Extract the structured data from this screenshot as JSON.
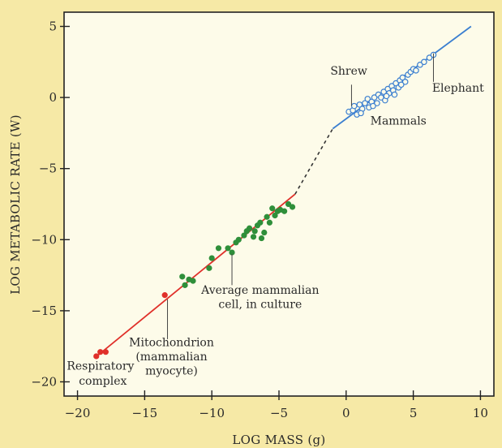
{
  "chart_data": {
    "type": "scatter",
    "xlabel": "LOG MASS (g)",
    "ylabel": "LOG METABOLIC RATE (W)",
    "xlim": [
      -21,
      11
    ],
    "ylim": [
      -21,
      6
    ],
    "xticks": [
      -20,
      -15,
      -10,
      -5,
      0,
      5,
      10
    ],
    "yticks": [
      5,
      0,
      -5,
      -10,
      -15,
      -20
    ],
    "grid": false,
    "colors": {
      "background": "#f6e9a6",
      "plot_area": "#fdfbe9",
      "red": "#e0302a",
      "green": "#2f8f3a",
      "blue": "#3b7fd0",
      "dashed": "#333333"
    },
    "fit_lines": [
      {
        "color": "red",
        "style": "solid",
        "x": [
          -18.7,
          -3.8
        ],
        "y": [
          -18.3,
          -6.8
        ]
      },
      {
        "color": "dashed",
        "style": "dashed",
        "x": [
          -3.8,
          -1.0
        ],
        "y": [
          -6.8,
          -2.2
        ]
      },
      {
        "color": "blue",
        "style": "solid",
        "x": [
          -1.0,
          9.3
        ],
        "y": [
          -2.2,
          5.0
        ]
      }
    ],
    "series": [
      {
        "color": "red",
        "marker": "filled-circle",
        "points": [
          [
            -18.6,
            -18.2
          ],
          [
            -18.3,
            -17.9
          ],
          [
            -17.9,
            -17.9
          ],
          [
            -13.5,
            -13.9
          ]
        ]
      },
      {
        "color": "green",
        "marker": "filled-circle",
        "points": [
          [
            -12.2,
            -12.6
          ],
          [
            -12.0,
            -13.2
          ],
          [
            -11.7,
            -12.8
          ],
          [
            -11.4,
            -12.9
          ],
          [
            -10.2,
            -12.0
          ],
          [
            -10.0,
            -11.3
          ],
          [
            -9.5,
            -10.6
          ],
          [
            -8.8,
            -10.6
          ],
          [
            -8.5,
            -10.9
          ],
          [
            -8.2,
            -10.2
          ],
          [
            -8.0,
            -10.0
          ],
          [
            -7.6,
            -9.7
          ],
          [
            -7.4,
            -9.4
          ],
          [
            -7.2,
            -9.2
          ],
          [
            -6.9,
            -9.8
          ],
          [
            -6.8,
            -9.4
          ],
          [
            -6.6,
            -9.0
          ],
          [
            -6.4,
            -8.8
          ],
          [
            -6.1,
            -9.5
          ],
          [
            -5.9,
            -8.4
          ],
          [
            -5.7,
            -8.8
          ],
          [
            -5.5,
            -7.8
          ],
          [
            -5.3,
            -8.3
          ],
          [
            -5.1,
            -8.0
          ],
          [
            -4.9,
            -7.9
          ],
          [
            -4.6,
            -8.0
          ],
          [
            -4.3,
            -7.5
          ],
          [
            -4.0,
            -7.7
          ],
          [
            -6.3,
            -9.9
          ]
        ]
      },
      {
        "color": "blue",
        "marker": "open-circle",
        "points": [
          [
            0.2,
            -1.0
          ],
          [
            0.5,
            -0.9
          ],
          [
            0.6,
            -0.6
          ],
          [
            0.8,
            -1.2
          ],
          [
            1.0,
            -0.5
          ],
          [
            1.2,
            -0.8
          ],
          [
            1.4,
            -0.4
          ],
          [
            1.6,
            -0.1
          ],
          [
            1.7,
            -0.7
          ],
          [
            1.9,
            -0.3
          ],
          [
            2.1,
            0.0
          ],
          [
            2.3,
            -0.4
          ],
          [
            2.4,
            0.2
          ],
          [
            2.6,
            0.0
          ],
          [
            2.8,
            0.4
          ],
          [
            2.9,
            -0.2
          ],
          [
            3.1,
            0.6
          ],
          [
            3.2,
            0.3
          ],
          [
            3.4,
            0.8
          ],
          [
            3.5,
            0.5
          ],
          [
            3.7,
            1.0
          ],
          [
            3.9,
            0.7
          ],
          [
            4.0,
            1.2
          ],
          [
            4.2,
            1.4
          ],
          [
            4.4,
            1.1
          ],
          [
            4.6,
            1.6
          ],
          [
            4.8,
            1.8
          ],
          [
            5.0,
            2.0
          ],
          [
            5.2,
            1.9
          ],
          [
            5.5,
            2.3
          ],
          [
            5.8,
            2.5
          ],
          [
            6.2,
            2.8
          ],
          [
            6.5,
            3.0
          ],
          [
            1.1,
            -1.1
          ],
          [
            2.0,
            -0.6
          ],
          [
            3.0,
            0.1
          ],
          [
            3.6,
            0.2
          ],
          [
            4.1,
            0.9
          ]
        ]
      }
    ],
    "annotations": [
      {
        "key": "respiratory_line1",
        "text": "Respiratory",
        "x": -20.8,
        "y": -19.15,
        "anchor": "start"
      },
      {
        "key": "respiratory_line2",
        "text": "complex",
        "x": -19.9,
        "y": -20.2,
        "anchor": "start"
      },
      {
        "key": "mitochondrion_line1",
        "text": "Mitochondrion",
        "x": -13.0,
        "y": -17.5,
        "anchor": "middle"
      },
      {
        "key": "mitochondrion_line2",
        "text": "(mammalian",
        "x": -13.0,
        "y": -18.5,
        "anchor": "middle"
      },
      {
        "key": "mitochondrion_line3",
        "text": "myocyte)",
        "x": -13.0,
        "y": -19.5,
        "anchor": "middle"
      },
      {
        "key": "avg_cell_line1",
        "text": "Average mammalian",
        "x": -6.4,
        "y": -13.8,
        "anchor": "middle"
      },
      {
        "key": "avg_cell_line2",
        "text": "cell, in culture",
        "x": -6.4,
        "y": -14.8,
        "anchor": "middle"
      },
      {
        "key": "shrew",
        "text": "Shrew",
        "x": 0.2,
        "y": 1.6,
        "anchor": "middle"
      },
      {
        "key": "elephant",
        "text": "Elephant",
        "x": 6.4,
        "y": 0.4,
        "anchor": "start"
      },
      {
        "key": "mammals",
        "text": "Mammals",
        "x": 1.8,
        "y": -1.9,
        "anchor": "start"
      }
    ],
    "leaders": [
      {
        "x": -13.3,
        "y1": -14.2,
        "y2": -17.0
      },
      {
        "x": -8.5,
        "y1": -11.0,
        "y2": -13.2
      },
      {
        "x": 0.4,
        "y1": 0.9,
        "y2": -0.6
      },
      {
        "x": 6.5,
        "y1": 3.1,
        "y2": 1.1
      }
    ]
  }
}
